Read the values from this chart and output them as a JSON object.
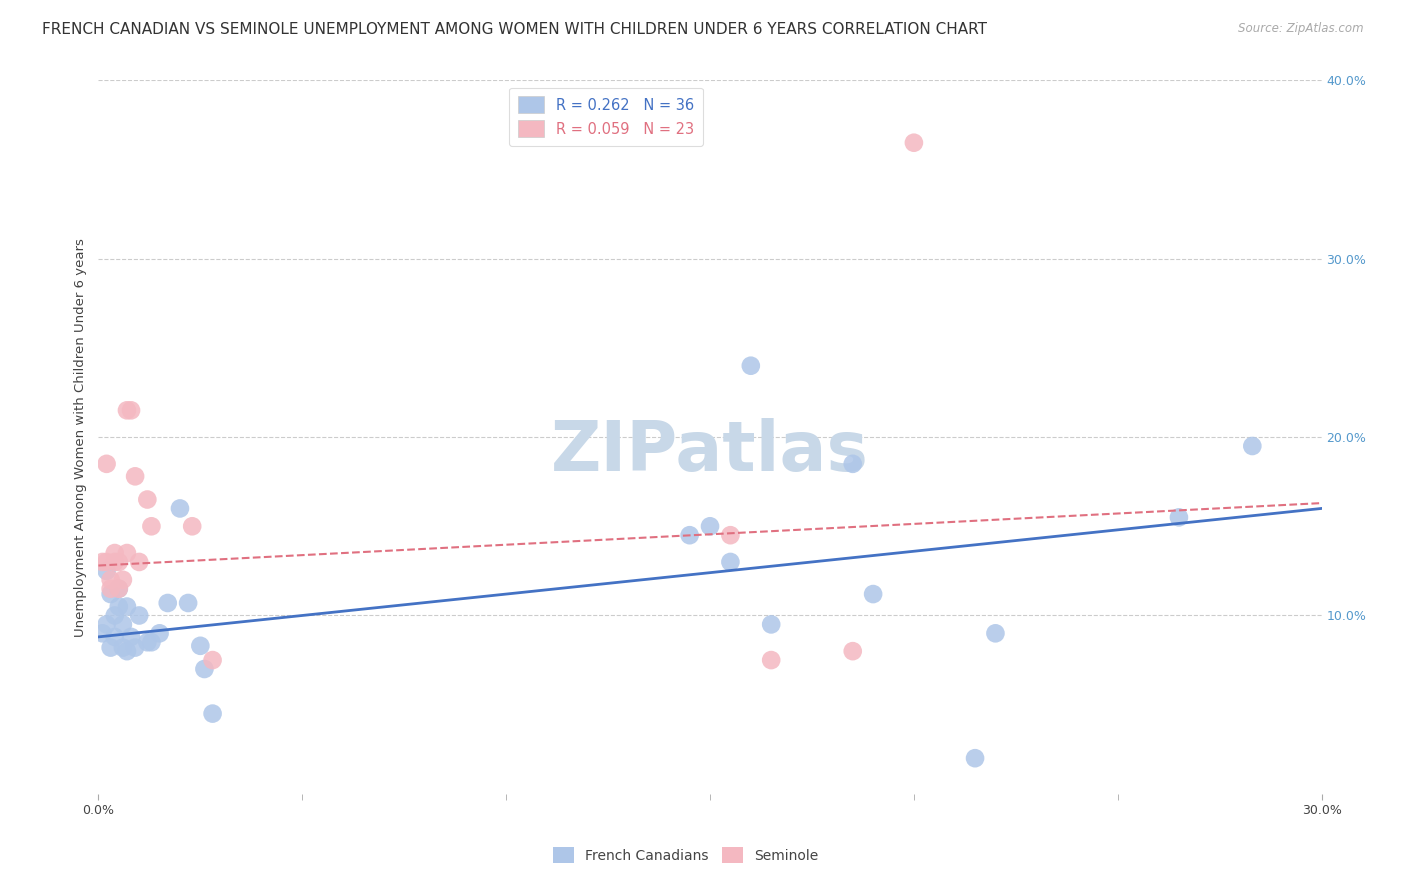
{
  "title": "FRENCH CANADIAN VS SEMINOLE UNEMPLOYMENT AMONG WOMEN WITH CHILDREN UNDER 6 YEARS CORRELATION CHART",
  "source": "Source: ZipAtlas.com",
  "ylabel": "Unemployment Among Women with Children Under 6 years",
  "x_min": 0.0,
  "x_max": 0.3,
  "y_min": 0.0,
  "y_max": 0.4,
  "french_canadians_x": [
    0.001,
    0.002,
    0.002,
    0.003,
    0.003,
    0.004,
    0.004,
    0.005,
    0.005,
    0.006,
    0.006,
    0.007,
    0.007,
    0.008,
    0.009,
    0.01,
    0.012,
    0.013,
    0.015,
    0.017,
    0.02,
    0.022,
    0.025,
    0.026,
    0.028,
    0.145,
    0.15,
    0.155,
    0.16,
    0.165,
    0.185,
    0.19,
    0.215,
    0.22,
    0.265,
    0.283
  ],
  "french_canadians_y": [
    0.09,
    0.095,
    0.125,
    0.082,
    0.112,
    0.088,
    0.1,
    0.105,
    0.115,
    0.082,
    0.095,
    0.105,
    0.08,
    0.088,
    0.082,
    0.1,
    0.085,
    0.085,
    0.09,
    0.107,
    0.16,
    0.107,
    0.083,
    0.07,
    0.045,
    0.145,
    0.15,
    0.13,
    0.24,
    0.095,
    0.185,
    0.112,
    0.02,
    0.09,
    0.155,
    0.195
  ],
  "seminole_x": [
    0.001,
    0.002,
    0.002,
    0.003,
    0.003,
    0.004,
    0.004,
    0.005,
    0.005,
    0.006,
    0.007,
    0.007,
    0.008,
    0.009,
    0.01,
    0.012,
    0.013,
    0.023,
    0.028,
    0.155,
    0.165,
    0.185,
    0.2
  ],
  "seminole_y": [
    0.13,
    0.13,
    0.185,
    0.115,
    0.12,
    0.135,
    0.13,
    0.115,
    0.13,
    0.12,
    0.135,
    0.215,
    0.215,
    0.178,
    0.13,
    0.165,
    0.15,
    0.15,
    0.075,
    0.145,
    0.075,
    0.08,
    0.365
  ],
  "fc_trend_x": [
    0.0,
    0.3
  ],
  "fc_trend_y": [
    0.088,
    0.16
  ],
  "sem_trend_x": [
    0.0,
    0.3
  ],
  "sem_trend_y": [
    0.128,
    0.163
  ],
  "fc_color": "#aec6e8",
  "fc_line_color": "#4472c4",
  "sem_color": "#f4b8c1",
  "sem_line_color": "#e07080",
  "background_color": "#ffffff",
  "grid_color": "#cccccc",
  "title_fontsize": 11,
  "axis_label_fontsize": 9.5,
  "tick_fontsize": 9,
  "watermark_text": "ZIPatlas",
  "watermark_color": "#c8d8e8",
  "watermark_fontsize": 50,
  "right_tick_color": "#5599cc"
}
